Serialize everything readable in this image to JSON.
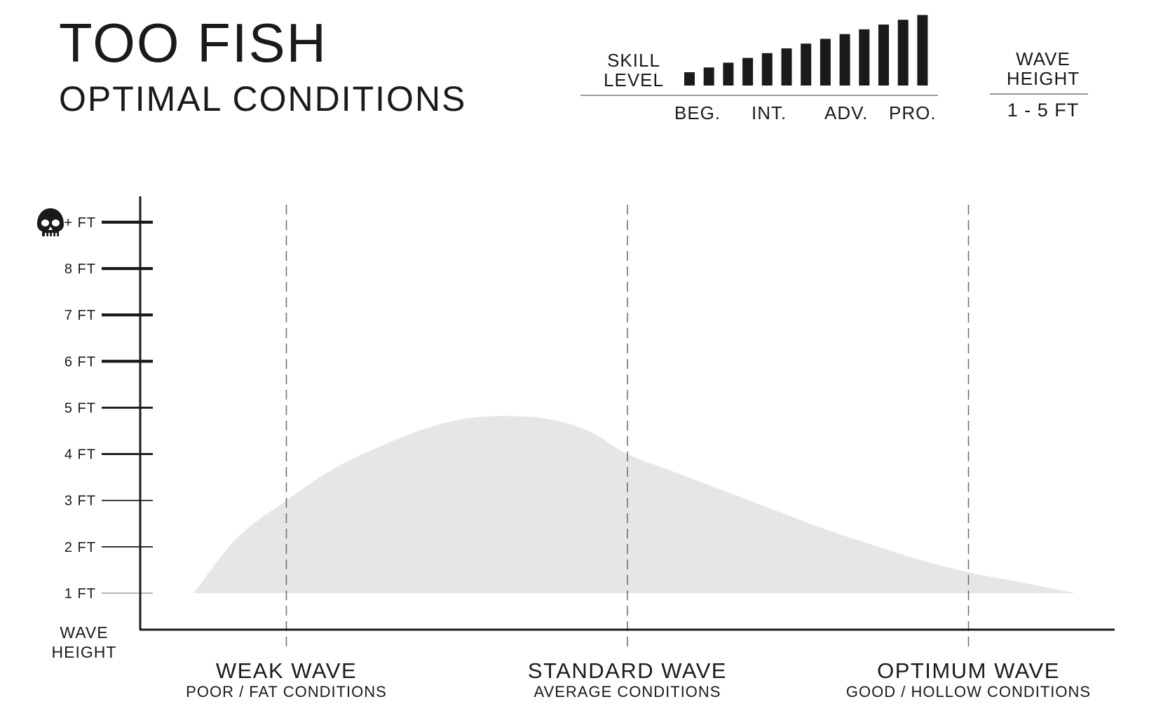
{
  "header": {
    "title": "TOO FISH",
    "subtitle": "OPTIMAL CONDITIONS",
    "skill_label": "SKILL\nLEVEL",
    "skill_ticks": [
      "BEG.",
      "INT.",
      "ADV.",
      "PRO."
    ],
    "skill_bars_count": 13,
    "wave_height_label": "WAVE\nHEIGHT",
    "wave_height_value": "1 - 5 FT"
  },
  "colors": {
    "text": "#1a1a1a",
    "curve_fill": "#e6e6e6",
    "axis": "#1a1a1a",
    "divider": "#9a9a9a"
  },
  "chart_data": {
    "type": "area",
    "title": "",
    "xlabel": "",
    "ylabel": "WAVE\nHEIGHT",
    "y_ticks": [
      "1 FT",
      "2 FT",
      "3 FT",
      "4 FT",
      "5 FT",
      "6 FT",
      "7 FT",
      "8 FT",
      "+ FT"
    ],
    "y_tick_values": [
      1,
      2,
      3,
      4,
      5,
      6,
      7,
      8,
      9
    ],
    "y_tick_top_icon": "skull-icon",
    "ylim": [
      0.2,
      9.5
    ],
    "xlim": [
      0,
      10
    ],
    "categories": [
      {
        "name": "WEAK WAVE",
        "sub": "POOR / FAT CONDITIONS",
        "x": 1.5
      },
      {
        "name": "STANDARD WAVE",
        "sub": "AVERAGE CONDITIONS",
        "x": 5
      },
      {
        "name": "OPTIMUM WAVE",
        "sub": "GOOD / HOLLOW CONDITIONS",
        "x": 8.5
      }
    ],
    "series": [
      {
        "x": [
          0.55,
          1.0,
          1.5,
          2.0,
          2.5,
          3.0,
          3.4,
          3.8,
          4.2,
          4.6,
          5.0,
          5.5,
          6.0,
          6.5,
          7.0,
          7.5,
          8.0,
          8.5,
          9.0,
          9.6
        ],
        "y": [
          1.0,
          2.2,
          3.0,
          3.7,
          4.2,
          4.6,
          4.78,
          4.82,
          4.75,
          4.5,
          4.0,
          3.6,
          3.2,
          2.8,
          2.4,
          2.05,
          1.72,
          1.45,
          1.25,
          1.0
        ],
        "baseline": 1.0
      }
    ],
    "grid": false,
    "legend": "none"
  }
}
